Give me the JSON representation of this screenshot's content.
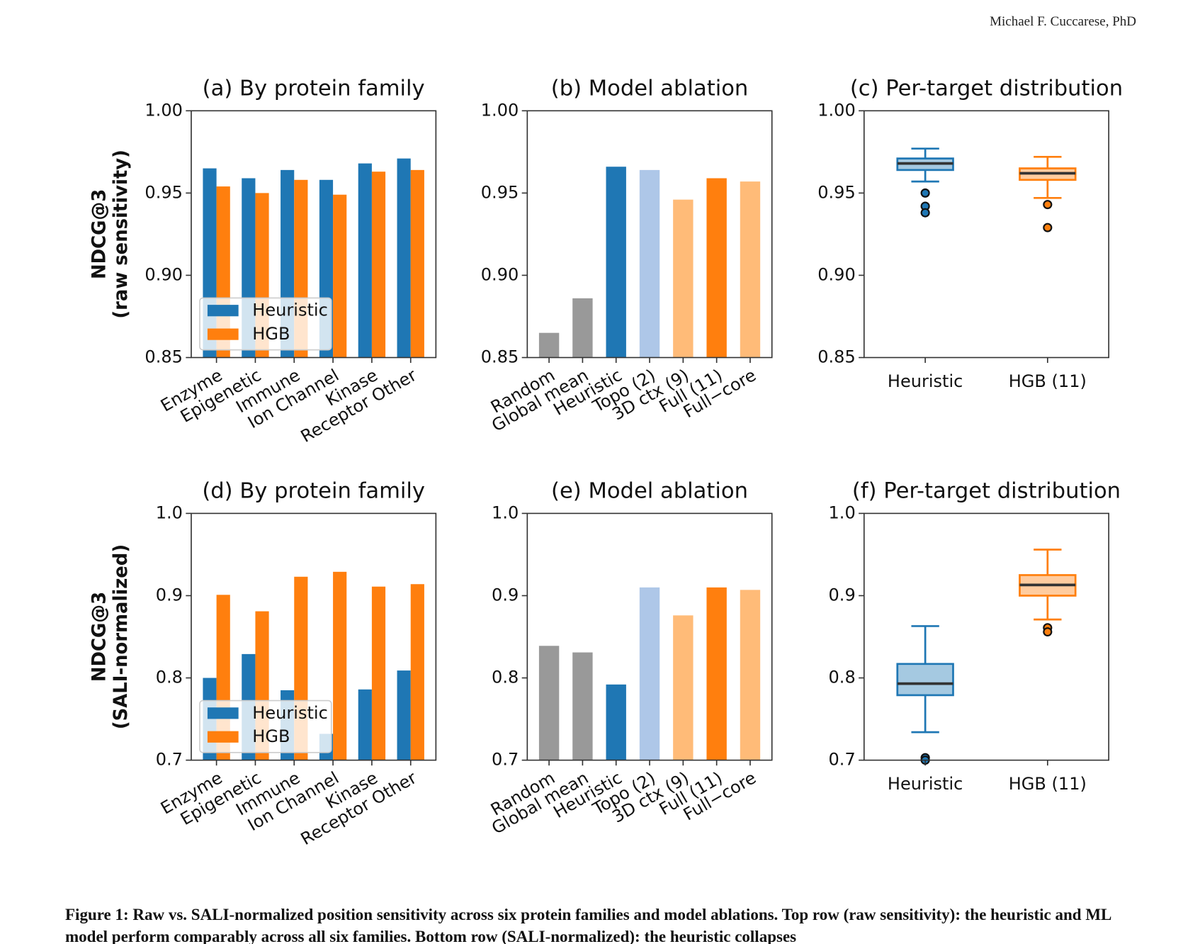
{
  "header": {
    "author": "Michael F. Cuccarese, PhD"
  },
  "chart_data": [
    {
      "type": "bar",
      "title": "(a) By protein family",
      "ylabel": [
        "NDCG@3",
        "(raw sensitivity)"
      ],
      "categories": [
        "Enzyme",
        "Epigenetic",
        "Immune",
        "Ion Channel",
        "Kinase",
        "Receptor Other"
      ],
      "series": [
        {
          "name": "Heuristic",
          "color": "#1f77b4",
          "values": [
            0.965,
            0.959,
            0.964,
            0.958,
            0.968,
            0.971
          ]
        },
        {
          "name": "HGB",
          "color": "#ff7f0e",
          "values": [
            0.954,
            0.95,
            0.958,
            0.949,
            0.963,
            0.964
          ]
        }
      ],
      "ylim": [
        0.85,
        1.0
      ],
      "yticks": [
        {
          "value": 0.85,
          "label": "0.85"
        },
        {
          "value": 0.9,
          "label": "0.90"
        },
        {
          "value": 0.95,
          "label": "0.95"
        },
        {
          "value": 1.0,
          "label": "1.00"
        }
      ],
      "legend": "lower left"
    },
    {
      "type": "bar",
      "title": "(b) Model ablation",
      "categories": [
        "Random",
        "Global mean",
        "Heuristic",
        "Topo (2)",
        "3D ctx (9)",
        "Full (11)",
        "Full−core"
      ],
      "values": [
        0.865,
        0.886,
        0.966,
        0.964,
        0.946,
        0.959,
        0.957
      ],
      "colors": [
        "#999999",
        "#999999",
        "#1f77b4",
        "#aec7e8",
        "#ffbb78",
        "#ff7f0e",
        "#ffbb78"
      ],
      "ylim": [
        0.85,
        1.0
      ],
      "yticks": [
        {
          "value": 0.85,
          "label": "0.85"
        },
        {
          "value": 0.9,
          "label": "0.90"
        },
        {
          "value": 0.95,
          "label": "0.95"
        },
        {
          "value": 1.0,
          "label": "1.00"
        }
      ]
    },
    {
      "type": "box",
      "title": "(c) Per-target distribution",
      "categories": [
        "Heuristic",
        "HGB (11)"
      ],
      "colors": [
        "#1f77b4",
        "#ff7f0e"
      ],
      "boxes": [
        {
          "whisker_low": 0.957,
          "q1": 0.964,
          "median": 0.968,
          "q3": 0.971,
          "whisker_high": 0.977,
          "outliers": [
            0.95,
            0.942,
            0.938
          ]
        },
        {
          "whisker_low": 0.947,
          "q1": 0.958,
          "median": 0.962,
          "q3": 0.965,
          "whisker_high": 0.972,
          "outliers": [
            0.943,
            0.929
          ]
        }
      ],
      "ylim": [
        0.85,
        1.0
      ],
      "yticks": [
        {
          "value": 0.85,
          "label": "0.85"
        },
        {
          "value": 0.9,
          "label": "0.90"
        },
        {
          "value": 0.95,
          "label": "0.95"
        },
        {
          "value": 1.0,
          "label": "1.00"
        }
      ]
    },
    {
      "type": "bar",
      "title": "(d) By protein family",
      "ylabel": [
        "NDCG@3",
        "(SALI-normalized)"
      ],
      "categories": [
        "Enzyme",
        "Epigenetic",
        "Immune",
        "Ion Channel",
        "Kinase",
        "Receptor Other"
      ],
      "series": [
        {
          "name": "Heuristic",
          "color": "#1f77b4",
          "values": [
            0.8,
            0.829,
            0.785,
            0.732,
            0.786,
            0.809
          ]
        },
        {
          "name": "HGB",
          "color": "#ff7f0e",
          "values": [
            0.901,
            0.881,
            0.923,
            0.929,
            0.911,
            0.914
          ]
        }
      ],
      "ylim": [
        0.7,
        1.0
      ],
      "yticks": [
        0.7,
        0.8,
        0.9,
        {
          "value": 1.0,
          "label": "1.0"
        }
      ],
      "legend": "lower left"
    },
    {
      "type": "bar",
      "title": "(e) Model ablation",
      "categories": [
        "Random",
        "Global mean",
        "Heuristic",
        "Topo (2)",
        "3D ctx (9)",
        "Full (11)",
        "Full−core"
      ],
      "values": [
        0.839,
        0.831,
        0.792,
        0.91,
        0.876,
        0.91,
        0.907
      ],
      "colors": [
        "#999999",
        "#999999",
        "#1f77b4",
        "#aec7e8",
        "#ffbb78",
        "#ff7f0e",
        "#ffbb78"
      ],
      "ylim": [
        0.7,
        1.0
      ],
      "yticks": [
        0.7,
        0.8,
        0.9,
        {
          "value": 1.0,
          "label": "1.0"
        }
      ]
    },
    {
      "type": "box",
      "title": "(f) Per-target distribution",
      "categories": [
        "Heuristic",
        "HGB (11)"
      ],
      "colors": [
        "#1f77b4",
        "#ff7f0e"
      ],
      "boxes": [
        {
          "whisker_low": 0.734,
          "q1": 0.779,
          "median": 0.793,
          "q3": 0.817,
          "whisker_high": 0.863,
          "outliers": [
            0.703,
            0.7
          ]
        },
        {
          "whisker_low": 0.871,
          "q1": 0.9,
          "median": 0.913,
          "q3": 0.925,
          "whisker_high": 0.956,
          "outliers": [
            0.861,
            0.856
          ]
        }
      ],
      "ylim": [
        0.7,
        1.0
      ],
      "yticks": [
        0.7,
        0.8,
        0.9,
        {
          "value": 1.0,
          "label": "1.0"
        }
      ]
    }
  ],
  "caption": "Figure 1: Raw vs. SALI-normalized position sensitivity across six protein families and model ablations. Top row (raw sensitivity): the heuristic and ML model perform comparably across all six families. Bottom row (SALI-normalized): the heuristic collapses"
}
